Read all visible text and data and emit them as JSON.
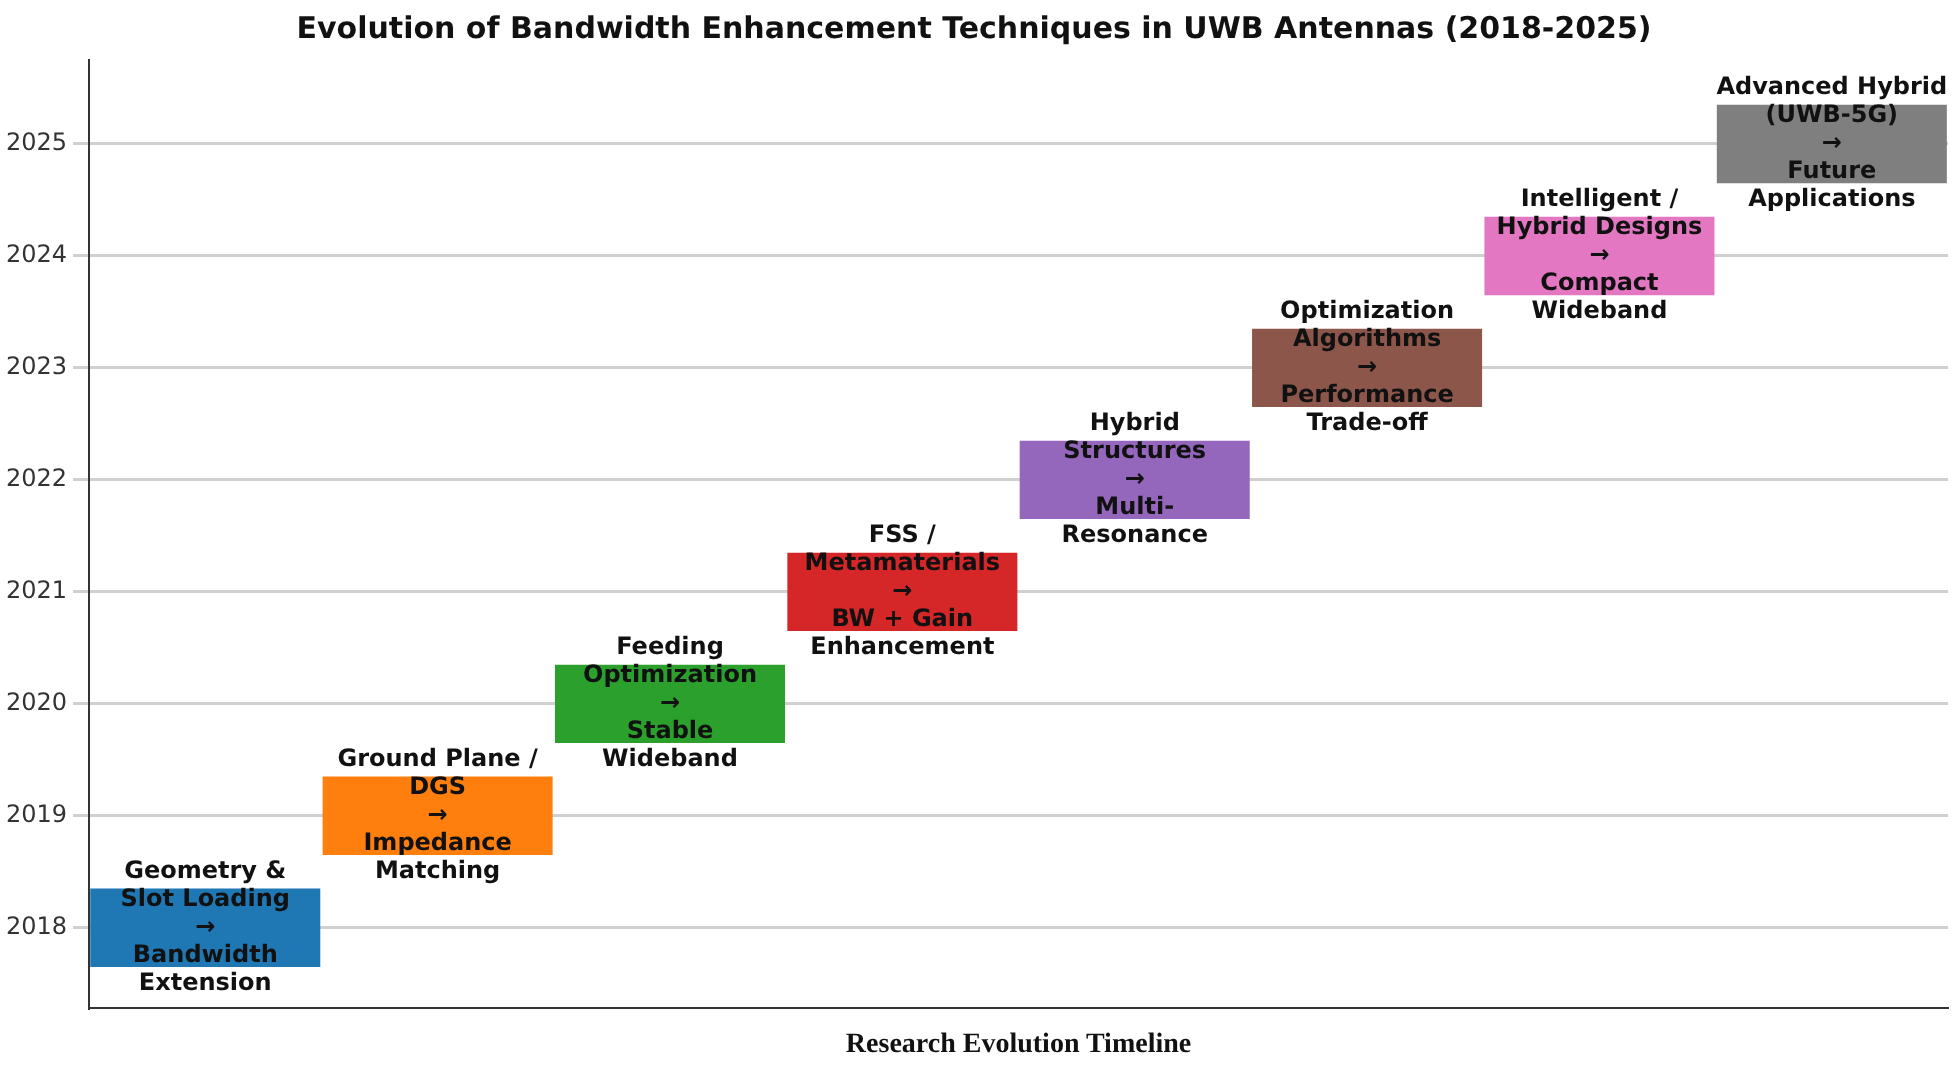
{
  "chart_data": {
    "type": "bar",
    "title": "Evolution of Bandwidth Enhancement Techniques in UWB Antennas (2018-2025)",
    "xlabel": "Research Evolution Timeline",
    "categories": [
      null,
      null,
      null,
      null,
      null,
      null,
      null,
      null
    ],
    "base": [
      2017.65,
      2018.65,
      2019.65,
      2020.65,
      2021.65,
      2022.65,
      2023.65,
      2024.65
    ],
    "values": [
      0.7,
      0.7,
      0.7,
      0.7,
      0.7,
      0.7,
      0.7,
      0.7
    ],
    "colors": [
      "#1f77b4",
      "#ff7f0e",
      "#2ca02c",
      "#d62728",
      "#9467bd",
      "#8c564b",
      "#e377c2",
      "#7f7f7f"
    ],
    "annotations": [
      "Geometry &\nSlot Loading\n→\nBandwidth\nExtension",
      "Ground Plane /\nDGS\n→\nImpedance\nMatching",
      "Feeding\nOptimization\n→\nStable\nWideband",
      "FSS /\nMetamaterials\n→\nBW + Gain\nEnhancement",
      "Hybrid\nStructures\n→\nMulti-\nResonance",
      "Optimization\nAlgorithms\n→\nPerformance\nTrade-off",
      "Intelligent /\nHybrid Designs\n→\nCompact\nWideband",
      "Advanced Hybrid\n(UWB-5G)\n→\nFuture\nApplications"
    ],
    "ylim": [
      2017.28,
      2025.75
    ],
    "yticks": [
      2018,
      2019,
      2020,
      2021,
      2022,
      2023,
      2024,
      2025
    ],
    "grid": "y",
    "legend": false,
    "tick_labels": "y"
  }
}
